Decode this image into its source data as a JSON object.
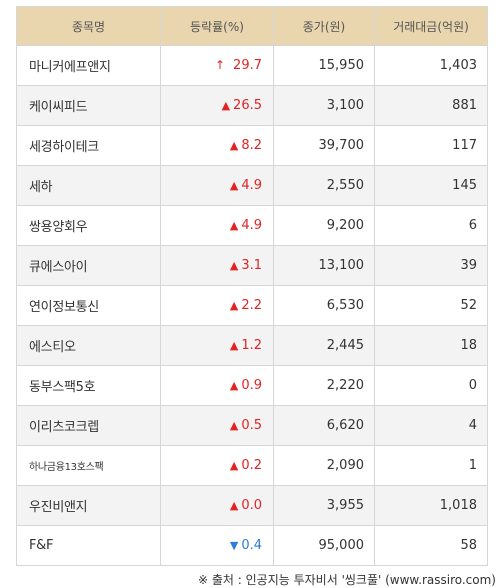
{
  "headers": [
    "종목명",
    "등락률(%)",
    "종가(원)",
    "거래대금(억원)"
  ],
  "rows": [
    {
      "name": "마니커에프앤지",
      "arrow": "↑",
      "direction": "up",
      "rate": "29.7",
      "close": "15,950",
      "volume": "1,403"
    },
    {
      "name": "케이씨피드",
      "arrow": "▲",
      "direction": "up",
      "rate": "26.5",
      "close": "3,100",
      "volume": "881"
    },
    {
      "name": "세경하이테크",
      "arrow": "▲",
      "direction": "up",
      "rate": "8.2",
      "close": "39,700",
      "volume": "117"
    },
    {
      "name": "세하",
      "arrow": "▲",
      "direction": "up",
      "rate": "4.9",
      "close": "2,550",
      "volume": "145"
    },
    {
      "name": "쌍용양회우",
      "arrow": "▲",
      "direction": "up",
      "rate": "4.9",
      "close": "9,200",
      "volume": "6"
    },
    {
      "name": "큐에스아이",
      "arrow": "▲",
      "direction": "up",
      "rate": "3.1",
      "close": "13,100",
      "volume": "39"
    },
    {
      "name": "연이정보통신",
      "arrow": "▲",
      "direction": "up",
      "rate": "2.2",
      "close": "6,530",
      "volume": "52"
    },
    {
      "name": "에스티오",
      "arrow": "▲",
      "direction": "up",
      "rate": "1.2",
      "close": "2,445",
      "volume": "18"
    },
    {
      "name": "동부스팩5호",
      "arrow": "▲",
      "direction": "up",
      "rate": "0.9",
      "close": "2,220",
      "volume": "0"
    },
    {
      "name": "이리츠코크렙",
      "arrow": "▲",
      "direction": "up",
      "rate": "0.5",
      "close": "6,620",
      "volume": "4"
    },
    {
      "name": "하나금융13호스팩",
      "arrow": "▲",
      "direction": "up",
      "rate": "0.2",
      "close": "2,090",
      "volume": "1"
    },
    {
      "name": "우진비앤지",
      "arrow": "▲",
      "direction": "up",
      "rate": "0.0",
      "close": "3,955",
      "volume": "1,018"
    },
    {
      "name": "F&F",
      "arrow": "▼",
      "direction": "down",
      "rate": "0.4",
      "close": "95,000",
      "volume": "58"
    }
  ],
  "source": "※ 출처 : 인공지능 투자비서 '씽크풀' (www.rassiro.com)",
  "colors": {
    "up": "#e02424",
    "down": "#2f7bd8",
    "header_bg": "#e9d5ae",
    "stripe_bg": "#f3f3f3"
  }
}
